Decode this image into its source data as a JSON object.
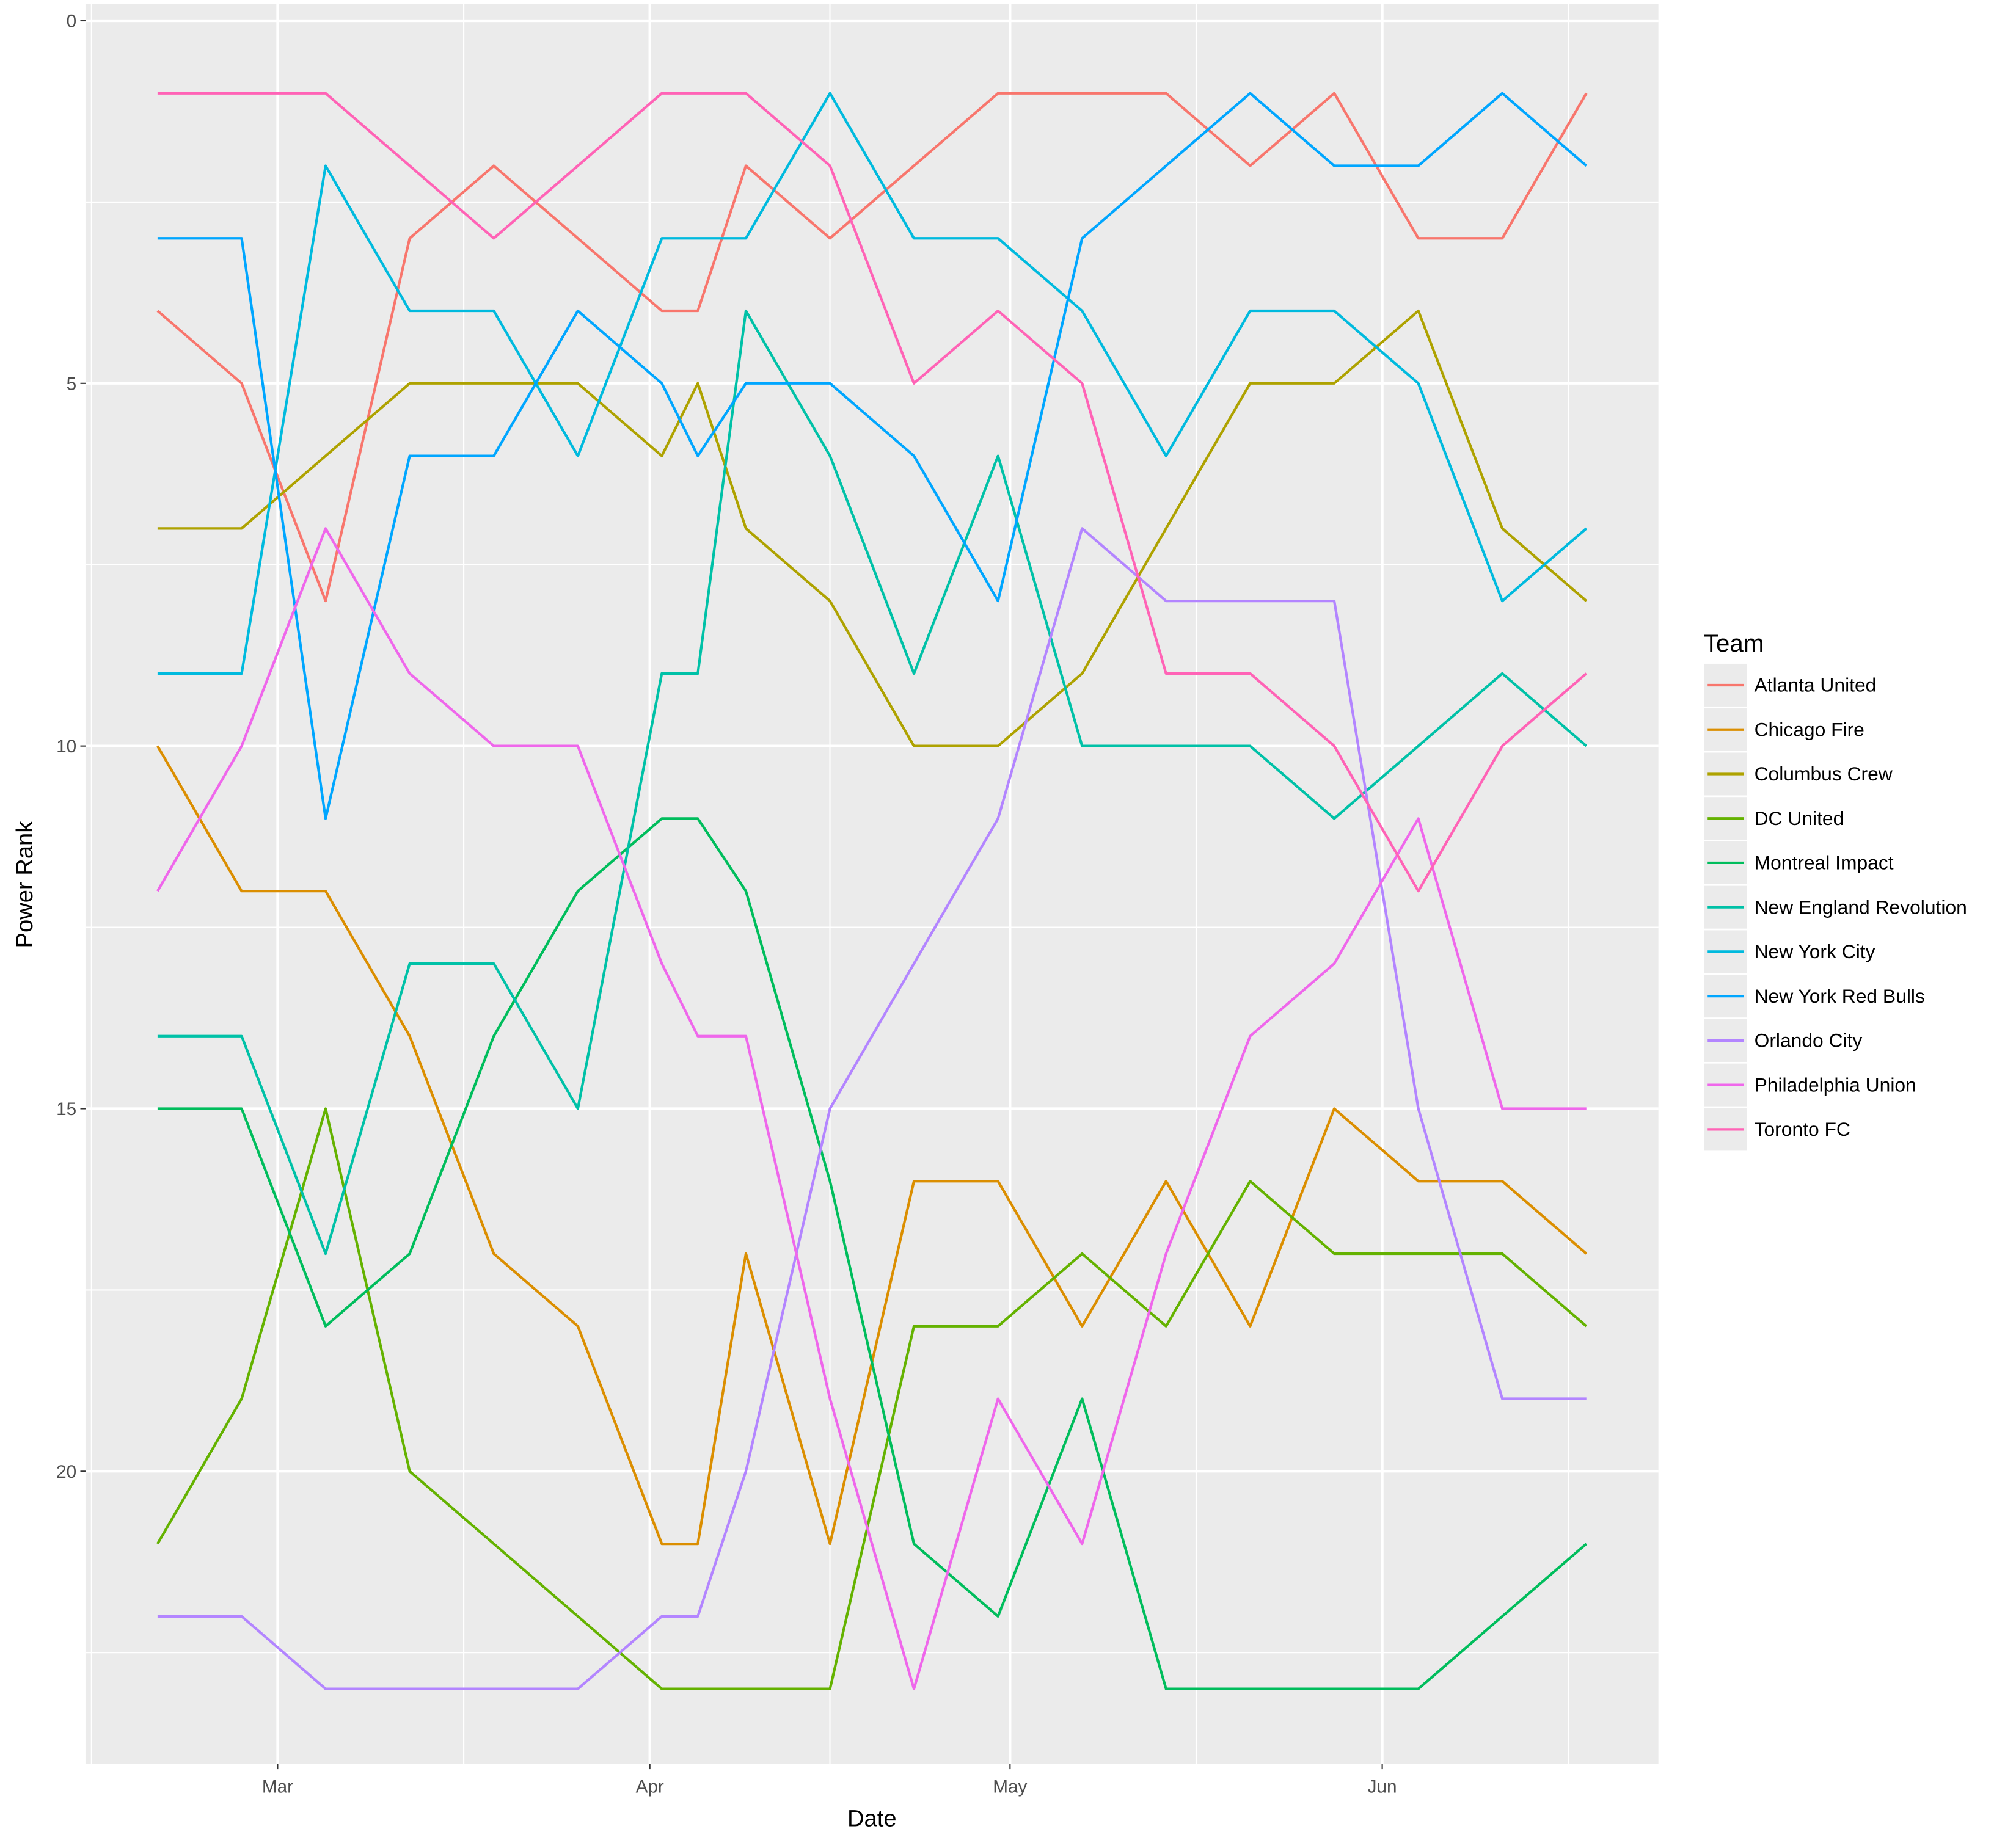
{
  "chart_data": {
    "type": "line",
    "title": "",
    "xlabel": "Date",
    "ylabel": "Power Rank",
    "y_reversed": true,
    "ylim": [
      0,
      24
    ],
    "yticks": [
      0,
      5,
      10,
      15,
      20
    ],
    "xlim": [
      "02-13",
      "06-24"
    ],
    "xticks": [
      {
        "date": "03-01",
        "label": "Mar"
      },
      {
        "date": "04-01",
        "label": "Apr"
      },
      {
        "date": "05-01",
        "label": "May"
      },
      {
        "date": "06-01",
        "label": "Jun"
      }
    ],
    "grid": true,
    "legend": {
      "title": "Team",
      "position": "right"
    },
    "x": [
      "02-19",
      "02-26",
      "03-05",
      "03-12",
      "03-19",
      "03-26",
      "04-02",
      "04-05",
      "04-09",
      "04-16",
      "04-23",
      "04-30",
      "05-07",
      "05-14",
      "05-21",
      "05-28",
      "06-04",
      "06-11",
      "06-18"
    ],
    "series": [
      {
        "name": "Atlanta United",
        "color": "#F8766D",
        "values": [
          4,
          5,
          8,
          3,
          2,
          3,
          4,
          4,
          2,
          3,
          2,
          1,
          1,
          1,
          2,
          1,
          3,
          3,
          1
        ]
      },
      {
        "name": "Chicago Fire",
        "color": "#DB8E00",
        "values": [
          10,
          12,
          12,
          14,
          17,
          18,
          21,
          21,
          17,
          21,
          16,
          16,
          18,
          16,
          18,
          15,
          16,
          16,
          17
        ]
      },
      {
        "name": "Columbus Crew",
        "color": "#AEA200",
        "values": [
          7,
          7,
          6,
          5,
          5,
          5,
          6,
          5,
          7,
          8,
          10,
          10,
          9,
          7,
          5,
          5,
          4,
          7,
          8
        ]
      },
      {
        "name": "DC United",
        "color": "#64B200",
        "values": [
          21,
          19,
          15,
          20,
          21,
          22,
          23,
          23,
          23,
          23,
          18,
          18,
          17,
          18,
          16,
          17,
          17,
          17,
          18
        ]
      },
      {
        "name": "Montreal Impact",
        "color": "#00BD5C",
        "values": [
          15,
          15,
          18,
          17,
          14,
          12,
          11,
          11,
          12,
          16,
          21,
          22,
          19,
          23,
          23,
          23,
          23,
          22,
          21
        ]
      },
      {
        "name": "New England Revolution",
        "color": "#00C1A7",
        "values": [
          14,
          14,
          17,
          13,
          13,
          15,
          9,
          9,
          4,
          6,
          9,
          6,
          10,
          10,
          10,
          11,
          10,
          9,
          10
        ]
      },
      {
        "name": "New York City",
        "color": "#00BADE",
        "values": [
          9,
          9,
          2,
          4,
          4,
          6,
          3,
          3,
          3,
          1,
          3,
          3,
          4,
          6,
          4,
          4,
          5,
          8,
          7
        ]
      },
      {
        "name": "New York Red Bulls",
        "color": "#00A6FF",
        "values": [
          3,
          3,
          11,
          6,
          6,
          4,
          5,
          6,
          5,
          5,
          6,
          8,
          3,
          2,
          1,
          2,
          2,
          1,
          2
        ]
      },
      {
        "name": "Orlando City",
        "color": "#B385FF",
        "values": [
          22,
          22,
          23,
          23,
          23,
          23,
          22,
          22,
          20,
          15,
          13,
          11,
          7,
          8,
          8,
          8,
          15,
          19,
          19
        ]
      },
      {
        "name": "Philadelphia Union",
        "color": "#EF67EB",
        "values": [
          12,
          10,
          7,
          9,
          10,
          10,
          13,
          14,
          14,
          19,
          23,
          19,
          21,
          17,
          14,
          13,
          11,
          15,
          15
        ]
      },
      {
        "name": "Toronto FC",
        "color": "#FF63B6",
        "values": [
          1,
          1,
          1,
          2,
          3,
          2,
          1,
          1,
          1,
          2,
          5,
          4,
          5,
          9,
          9,
          10,
          12,
          10,
          9
        ]
      }
    ]
  }
}
